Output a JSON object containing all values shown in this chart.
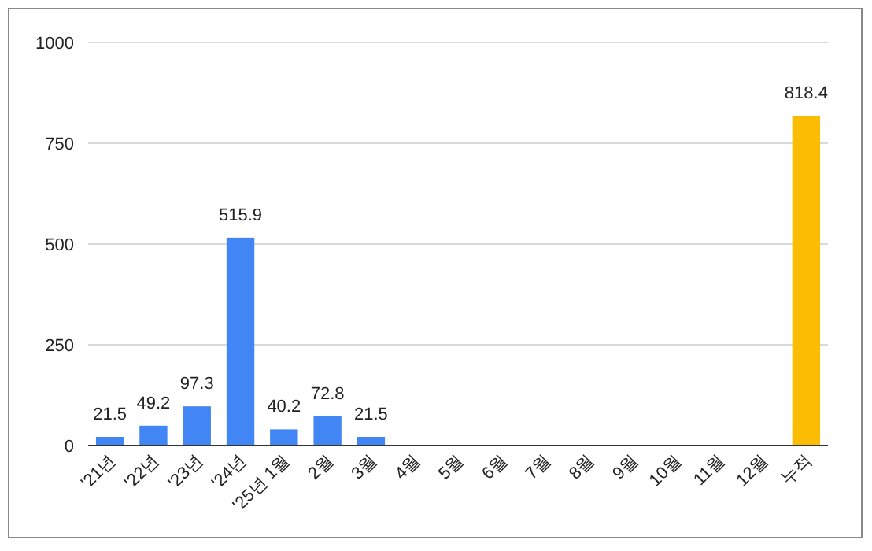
{
  "chart_data": {
    "type": "bar",
    "categories": [
      "'21년",
      "'22년",
      "'23년",
      "'24년",
      "'25년 1월",
      "2월",
      "3월",
      "4월",
      "5월",
      "6월",
      "7월",
      "8월",
      "9월",
      "10월",
      "11월",
      "12월",
      "누적"
    ],
    "values": [
      21.5,
      49.2,
      97.3,
      515.9,
      40.2,
      72.8,
      21.5,
      null,
      null,
      null,
      null,
      null,
      null,
      null,
      null,
      null,
      818.4
    ],
    "colors": [
      "#4285f4",
      "#4285f4",
      "#4285f4",
      "#4285f4",
      "#4285f4",
      "#4285f4",
      "#4285f4",
      null,
      null,
      null,
      null,
      null,
      null,
      null,
      null,
      null,
      "#fbbc04"
    ],
    "ylim": [
      0,
      1000
    ],
    "yticks": [
      0,
      250,
      500,
      750,
      1000
    ],
    "grid": "y",
    "data_labels": true
  }
}
